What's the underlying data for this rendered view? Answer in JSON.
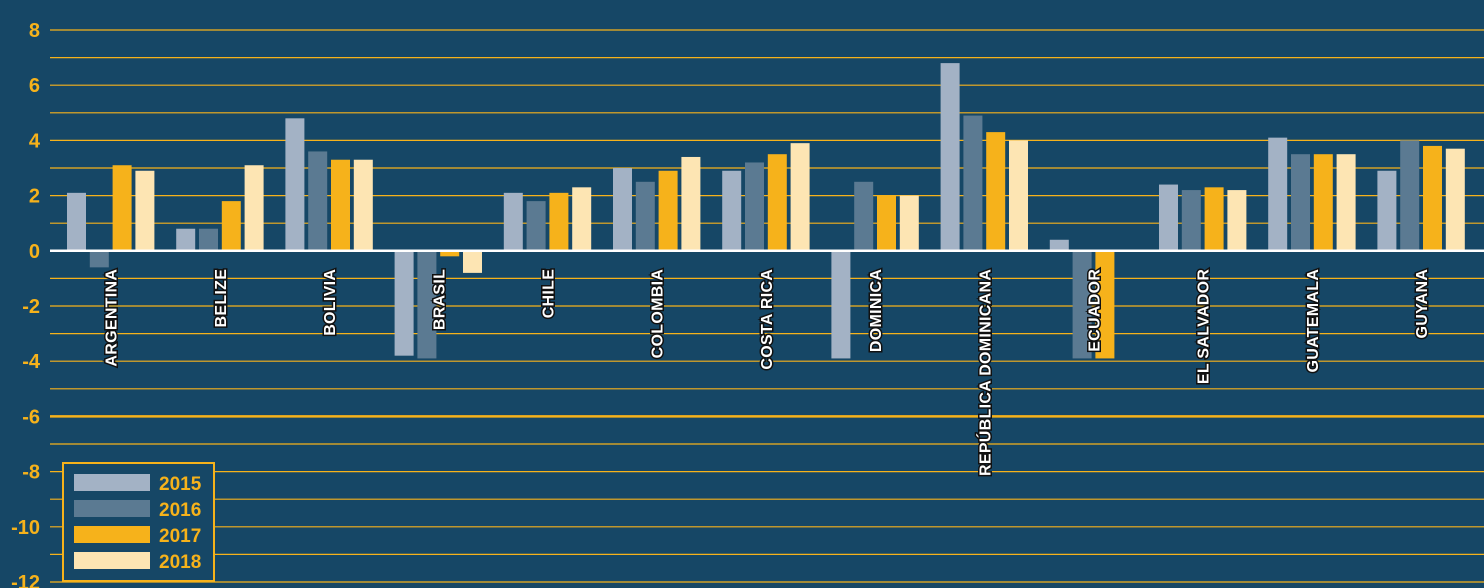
{
  "chart_data": {
    "type": "bar",
    "title": "",
    "xlabel": "",
    "ylabel": "",
    "ylim": [
      -12,
      8
    ],
    "yticks": [
      8,
      6,
      4,
      2,
      0,
      -2,
      -4,
      -6,
      -8,
      -10,
      -12
    ],
    "grid": true,
    "legend_position": "bottom-left",
    "categories": [
      "ARGENTINA",
      "BELIZE",
      "BOLIVIA",
      "BRASIL",
      "CHILE",
      "COLOMBIA",
      "COSTA RICA",
      "DOMINICA",
      "REPÚBLICA DOMINICANA",
      "ECUADOR",
      "EL SALVADOR",
      "GUATEMALA",
      "GUYANA"
    ],
    "series": [
      {
        "name": "2015",
        "color": "#A3B2C5",
        "values": [
          2.1,
          0.8,
          4.8,
          -3.8,
          2.1,
          3.0,
          2.9,
          -3.9,
          6.8,
          0.4,
          2.4,
          4.1,
          2.9
        ]
      },
      {
        "name": "2016",
        "color": "#5B7A92",
        "values": [
          -0.6,
          0.8,
          3.6,
          -3.9,
          1.8,
          2.5,
          3.2,
          2.5,
          4.9,
          -3.9,
          2.2,
          3.5,
          4.0
        ]
      },
      {
        "name": "2017",
        "color": "#F6B21B",
        "values": [
          3.1,
          1.8,
          3.3,
          -0.2,
          2.1,
          2.9,
          3.5,
          2.0,
          4.3,
          -3.9,
          2.3,
          3.5,
          3.8
        ]
      },
      {
        "name": "2018",
        "color": "#FDE5B3",
        "values": [
          2.9,
          3.1,
          3.3,
          -0.8,
          2.3,
          3.4,
          3.9,
          2.0,
          4.0,
          0.0,
          2.2,
          3.5,
          3.7
        ]
      }
    ]
  },
  "colors": {
    "background": "#164766",
    "grid": "#F6B21B",
    "zero_line": "#ffffff",
    "tick_text": "#F6B21B",
    "category_text": "#ffffff"
  }
}
